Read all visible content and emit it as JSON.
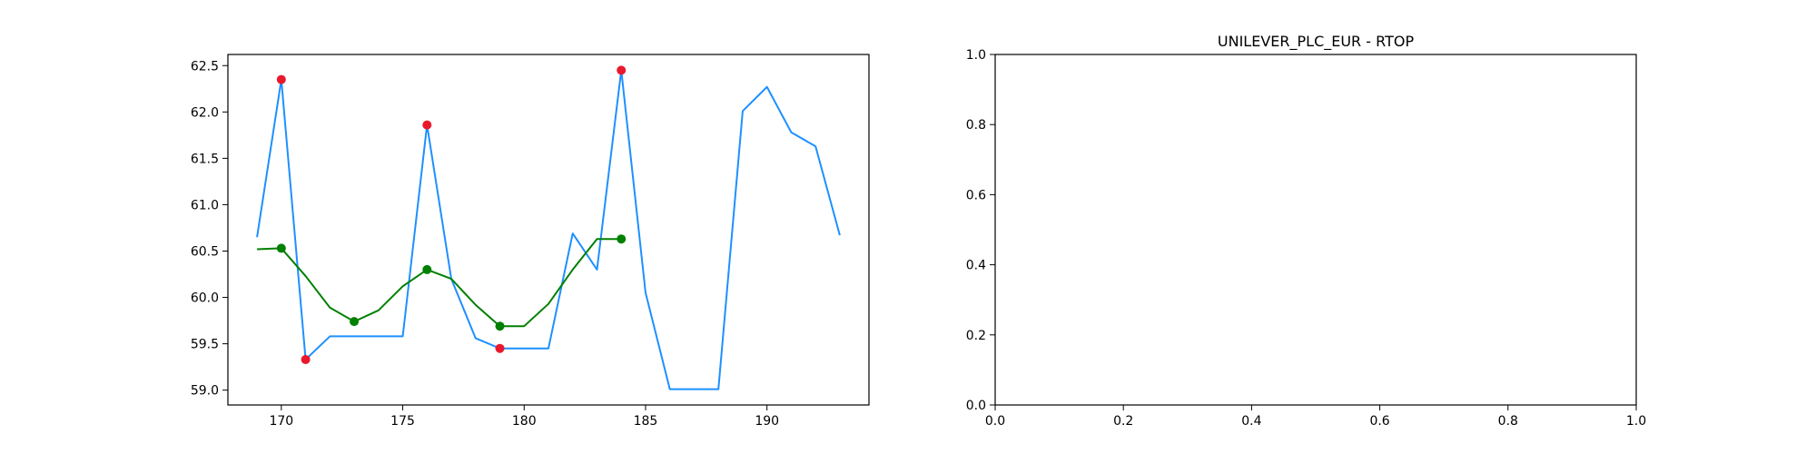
{
  "chart_data": [
    {
      "type": "line",
      "title": "",
      "xlabel": "",
      "ylabel": "",
      "xlim": [
        167.8,
        194.2
      ],
      "ylim": [
        58.84,
        62.62
      ],
      "xticks": [
        170,
        175,
        180,
        185,
        190
      ],
      "xtick_labels": [
        "170",
        "175",
        "180",
        "185",
        "190"
      ],
      "yticks": [
        59.0,
        59.5,
        60.0,
        60.5,
        61.0,
        61.5,
        62.0,
        62.5
      ],
      "ytick_labels": [
        "59.0",
        "59.5",
        "60.0",
        "60.5",
        "61.0",
        "61.5",
        "62.0",
        "62.5"
      ],
      "grid": false,
      "series": [
        {
          "role": "price",
          "color": "#1e90ff",
          "x": [
            169,
            170,
            171,
            172,
            173,
            174,
            175,
            176,
            177,
            178,
            179,
            180,
            181,
            182,
            183,
            184,
            185,
            186,
            187,
            188,
            189,
            190,
            191,
            192,
            193
          ],
          "y": [
            60.65,
            62.35,
            59.33,
            59.58,
            59.58,
            59.58,
            59.58,
            61.86,
            60.2,
            59.56,
            59.45,
            59.45,
            59.45,
            60.69,
            60.3,
            62.45,
            60.05,
            59.01,
            59.01,
            59.01,
            62.01,
            62.27,
            61.78,
            61.63,
            60.67
          ]
        },
        {
          "role": "smoothed",
          "color": "#008000",
          "x": [
            169,
            170,
            171,
            172,
            173,
            174,
            175,
            176,
            177,
            178,
            179,
            180,
            181,
            182,
            183,
            184
          ],
          "y": [
            60.52,
            60.53,
            60.23,
            59.89,
            59.74,
            59.86,
            60.12,
            60.3,
            60.2,
            59.92,
            59.69,
            59.69,
            59.93,
            60.3,
            60.63,
            60.63
          ]
        }
      ],
      "markers": [
        {
          "color": "#e8192c",
          "x": [
            170,
            171,
            176,
            179,
            184
          ],
          "y": [
            62.35,
            59.33,
            61.86,
            59.45,
            62.45
          ]
        },
        {
          "color": "#008000",
          "x": [
            170,
            173,
            176,
            179,
            184
          ],
          "y": [
            60.53,
            59.74,
            60.3,
            59.69,
            60.63
          ]
        }
      ]
    },
    {
      "type": "line",
      "title": "UNILEVER_PLC_EUR - RTOP",
      "xlabel": "",
      "ylabel": "",
      "xlim": [
        0.0,
        1.0
      ],
      "ylim": [
        0.0,
        1.0
      ],
      "xticks": [
        0.0,
        0.2,
        0.4,
        0.6,
        0.8,
        1.0
      ],
      "xtick_labels": [
        "0.0",
        "0.2",
        "0.4",
        "0.6",
        "0.8",
        "1.0"
      ],
      "yticks": [
        0.0,
        0.2,
        0.4,
        0.6,
        0.8,
        1.0
      ],
      "ytick_labels": [
        "0.0",
        "0.2",
        "0.4",
        "0.6",
        "0.8",
        "1.0"
      ],
      "grid": false,
      "series": [],
      "markers": []
    }
  ]
}
